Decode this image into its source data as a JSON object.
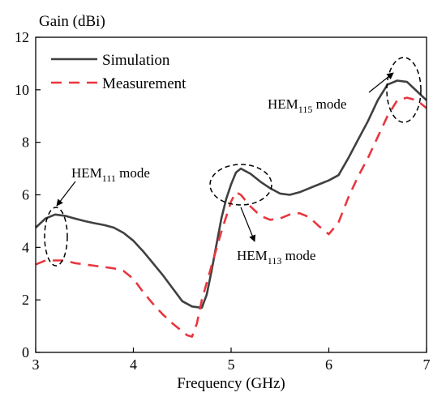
{
  "chart_data": {
    "type": "line",
    "title": "",
    "xlabel": "Frequency (GHz)",
    "ylabel": "Gain (dBi)",
    "xlim": [
      3,
      7
    ],
    "ylim": [
      0,
      12
    ],
    "xticks": [
      3,
      4,
      5,
      6,
      7
    ],
    "yticks": [
      0,
      2,
      4,
      6,
      8,
      10,
      12
    ],
    "grid": false,
    "legend_position": "top-left",
    "series": [
      {
        "name": "Simulation",
        "color": "#404040",
        "dash": "solid",
        "x": [
          3.0,
          3.1,
          3.2,
          3.3,
          3.4,
          3.5,
          3.6,
          3.7,
          3.8,
          3.9,
          4.0,
          4.1,
          4.2,
          4.3,
          4.4,
          4.5,
          4.6,
          4.7,
          4.75,
          4.8,
          4.85,
          4.9,
          4.95,
          5.0,
          5.05,
          5.1,
          5.2,
          5.3,
          5.4,
          5.5,
          5.6,
          5.7,
          5.8,
          5.9,
          6.0,
          6.1,
          6.2,
          6.3,
          6.4,
          6.5,
          6.6,
          6.7,
          6.8,
          6.9,
          7.0
        ],
        "values": [
          4.75,
          5.1,
          5.25,
          5.2,
          5.1,
          5.0,
          4.92,
          4.85,
          4.75,
          4.55,
          4.25,
          3.85,
          3.4,
          2.95,
          2.45,
          1.95,
          1.75,
          1.7,
          2.2,
          3.1,
          4.1,
          5.1,
          5.85,
          6.4,
          6.85,
          7.0,
          6.8,
          6.5,
          6.25,
          6.05,
          6.0,
          6.1,
          6.25,
          6.4,
          6.55,
          6.75,
          7.4,
          8.1,
          8.8,
          9.6,
          10.2,
          10.35,
          10.3,
          9.95,
          9.6
        ]
      },
      {
        "name": "Measurement",
        "color": "#e8363f",
        "dash": "dashed",
        "x": [
          3.0,
          3.1,
          3.2,
          3.3,
          3.4,
          3.5,
          3.6,
          3.7,
          3.8,
          3.9,
          4.0,
          4.1,
          4.2,
          4.3,
          4.4,
          4.5,
          4.55,
          4.6,
          4.65,
          4.7,
          4.8,
          4.9,
          5.0,
          5.05,
          5.1,
          5.2,
          5.3,
          5.4,
          5.5,
          5.6,
          5.7,
          5.8,
          5.9,
          6.0,
          6.1,
          6.2,
          6.3,
          6.4,
          6.5,
          6.6,
          6.7,
          6.8,
          6.9,
          7.0
        ],
        "values": [
          3.35,
          3.5,
          3.5,
          3.5,
          3.4,
          3.35,
          3.3,
          3.25,
          3.2,
          3.1,
          2.8,
          2.3,
          1.85,
          1.45,
          1.1,
          0.8,
          0.65,
          0.6,
          1.1,
          2.0,
          3.3,
          4.6,
          5.75,
          6.1,
          6.0,
          5.55,
          5.2,
          5.05,
          5.1,
          5.25,
          5.3,
          5.15,
          4.8,
          4.5,
          4.95,
          5.9,
          6.7,
          7.4,
          8.2,
          9.0,
          9.6,
          9.7,
          9.6,
          9.3
        ]
      }
    ],
    "annotations": [
      {
        "prefix": "HEM",
        "subscript": "111",
        "suffix": " mode"
      },
      {
        "prefix": "HEM",
        "subscript": "113",
        "suffix": " mode"
      },
      {
        "prefix": "HEM",
        "subscript": "115",
        "suffix": " mode"
      }
    ]
  }
}
